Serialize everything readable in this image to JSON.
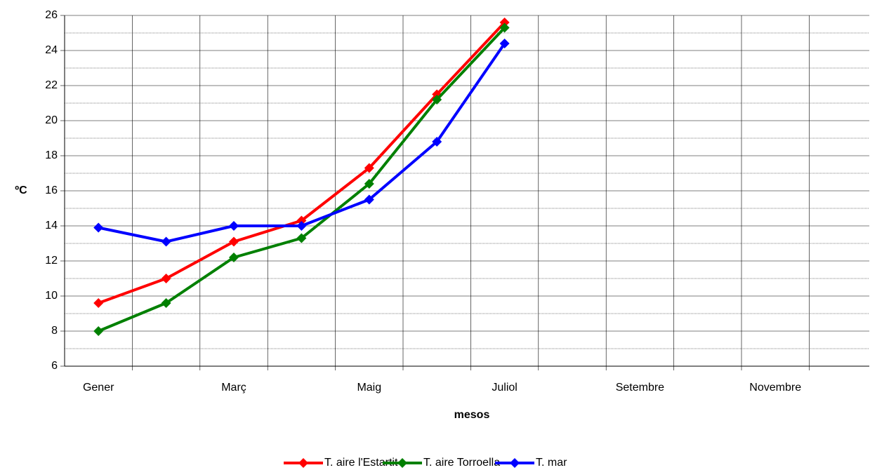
{
  "chart_data": {
    "type": "line",
    "x_label": "mesos",
    "y_label": "ºC",
    "categories": [
      "Gener",
      null,
      "Març",
      null,
      "Maig",
      null,
      "Juliol",
      null,
      "Setembre",
      null,
      "Novembre",
      null
    ],
    "series": [
      {
        "name": "T. aire l'Estartit",
        "color": "#ff0000",
        "values": [
          9.6,
          11.0,
          13.1,
          14.3,
          17.3,
          21.5,
          25.6,
          null,
          null,
          null,
          null,
          null
        ]
      },
      {
        "name": "T. aire Torroella",
        "color": "#008000",
        "values": [
          8.0,
          9.6,
          12.2,
          13.3,
          16.4,
          21.2,
          25.3,
          null,
          null,
          null,
          null,
          null
        ]
      },
      {
        "name": "T. mar",
        "color": "#0000ff",
        "values": [
          13.9,
          13.1,
          14.0,
          14.0,
          15.5,
          18.8,
          24.4,
          null,
          null,
          null,
          null,
          null
        ]
      }
    ],
    "ylim": [
      6,
      26
    ],
    "yticks": [
      6,
      8,
      10,
      12,
      14,
      16,
      18,
      20,
      22,
      24,
      26
    ],
    "minor_yticks": [
      7,
      9,
      11,
      13,
      15,
      17,
      19,
      21,
      23,
      25
    ],
    "grid": true,
    "legend": "bottom"
  }
}
